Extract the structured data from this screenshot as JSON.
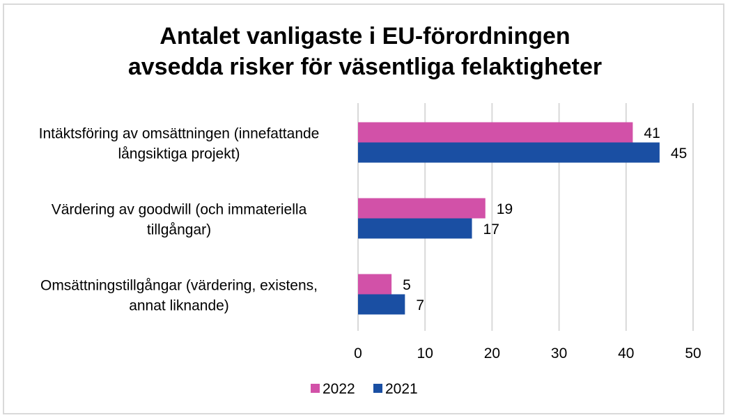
{
  "chart_data": {
    "type": "bar",
    "orientation": "horizontal",
    "title_lines": [
      "Antalet vanligaste i EU-förordningen",
      "avsedda risker för väsentliga felaktigheter"
    ],
    "categories": [
      [
        "Intäktsföring av omsättningen (innefattande",
        "långsiktiga projekt)"
      ],
      [
        "Värdering av goodwill (och immateriella",
        "tillgångar)"
      ],
      [
        "Omsättningstillgångar (värdering, existens,",
        "annat liknande)"
      ]
    ],
    "series": [
      {
        "name": "2022",
        "color": "#d251a8",
        "values": [
          41,
          19,
          5
        ]
      },
      {
        "name": "2021",
        "color": "#1a4fa3",
        "values": [
          45,
          17,
          7
        ]
      }
    ],
    "xlabel": "",
    "ylabel": "",
    "xlim": [
      0,
      50
    ],
    "xticks": [
      "0",
      "10",
      "20",
      "30",
      "40",
      "50"
    ],
    "grid": true,
    "grid_color": "#d9d9d9",
    "legend_position": "bottom"
  }
}
